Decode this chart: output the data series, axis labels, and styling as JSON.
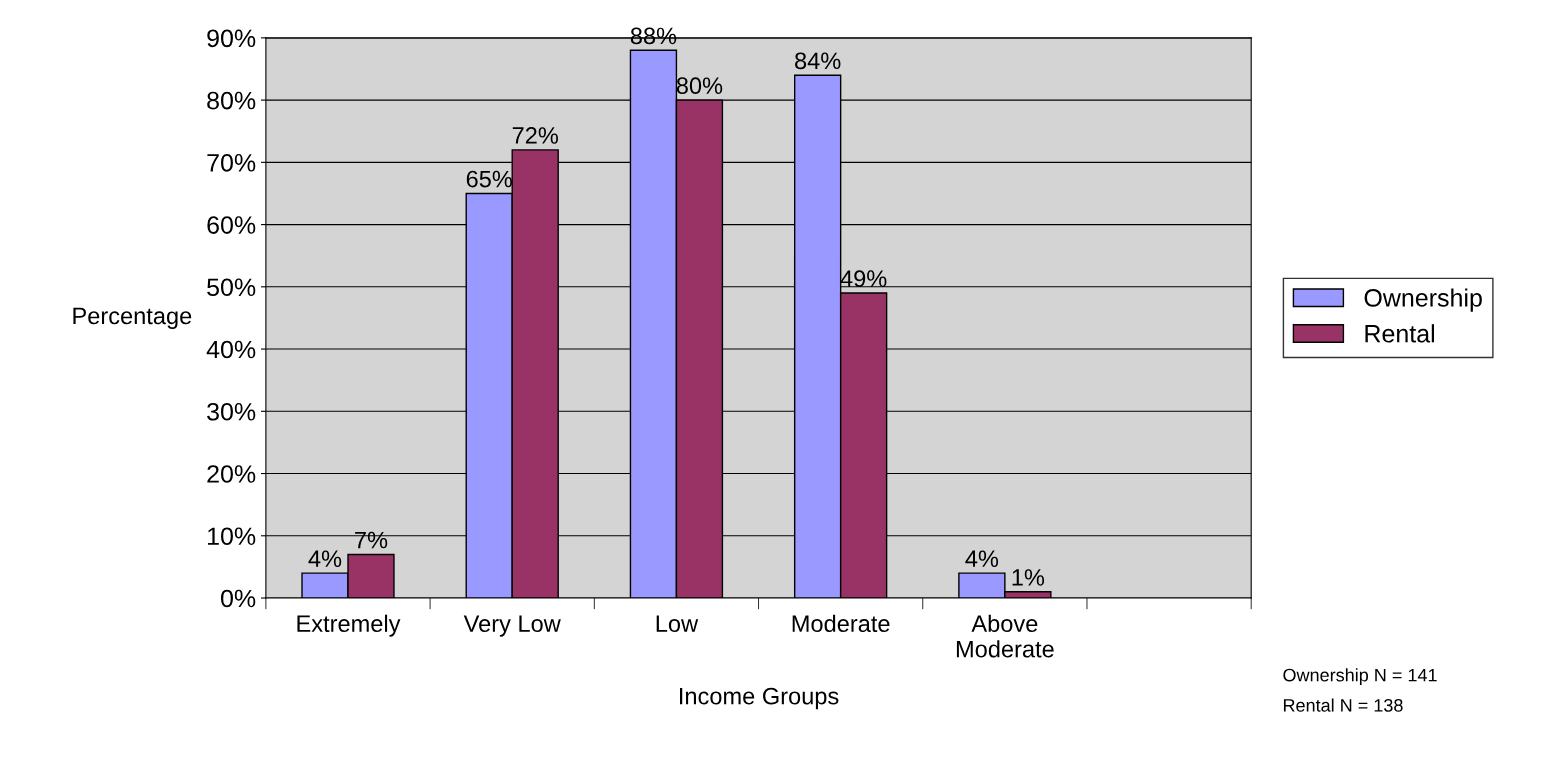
{
  "chart_data": {
    "type": "bar",
    "xlabel": "Income Groups",
    "ylabel": "Percentage",
    "categories": [
      "Extremely",
      "Very Low",
      "Low",
      "Moderate",
      "Above\nModerate",
      null
    ],
    "series": [
      {
        "name": "Ownership",
        "color": "#9999ff",
        "values": [
          4,
          65,
          88,
          84,
          4,
          null
        ],
        "value_labels": [
          "4%",
          "65%",
          "88%",
          "84%",
          "4%",
          null
        ]
      },
      {
        "name": "Rental",
        "color": "#993366",
        "values": [
          7,
          72,
          80,
          49,
          1,
          null
        ],
        "value_labels": [
          "7%",
          "72%",
          "80%",
          "49%",
          "1%",
          null
        ]
      }
    ],
    "ylim": [
      0,
      90
    ],
    "yticks": [
      {
        "value": 0,
        "label": "0%"
      },
      {
        "value": 10,
        "label": "10%"
      },
      {
        "value": 20,
        "label": "20%"
      },
      {
        "value": 30,
        "label": "30%"
      },
      {
        "value": 40,
        "label": "40%"
      },
      {
        "value": 50,
        "label": "50%"
      },
      {
        "value": 60,
        "label": "60%"
      },
      {
        "value": 70,
        "label": "70%"
      },
      {
        "value": 80,
        "label": "80%"
      },
      {
        "value": 90,
        "label": "90%"
      }
    ],
    "grid": "y",
    "legend": "right",
    "annotations": [
      "Ownership N = 141",
      "Rental N = 138"
    ]
  }
}
